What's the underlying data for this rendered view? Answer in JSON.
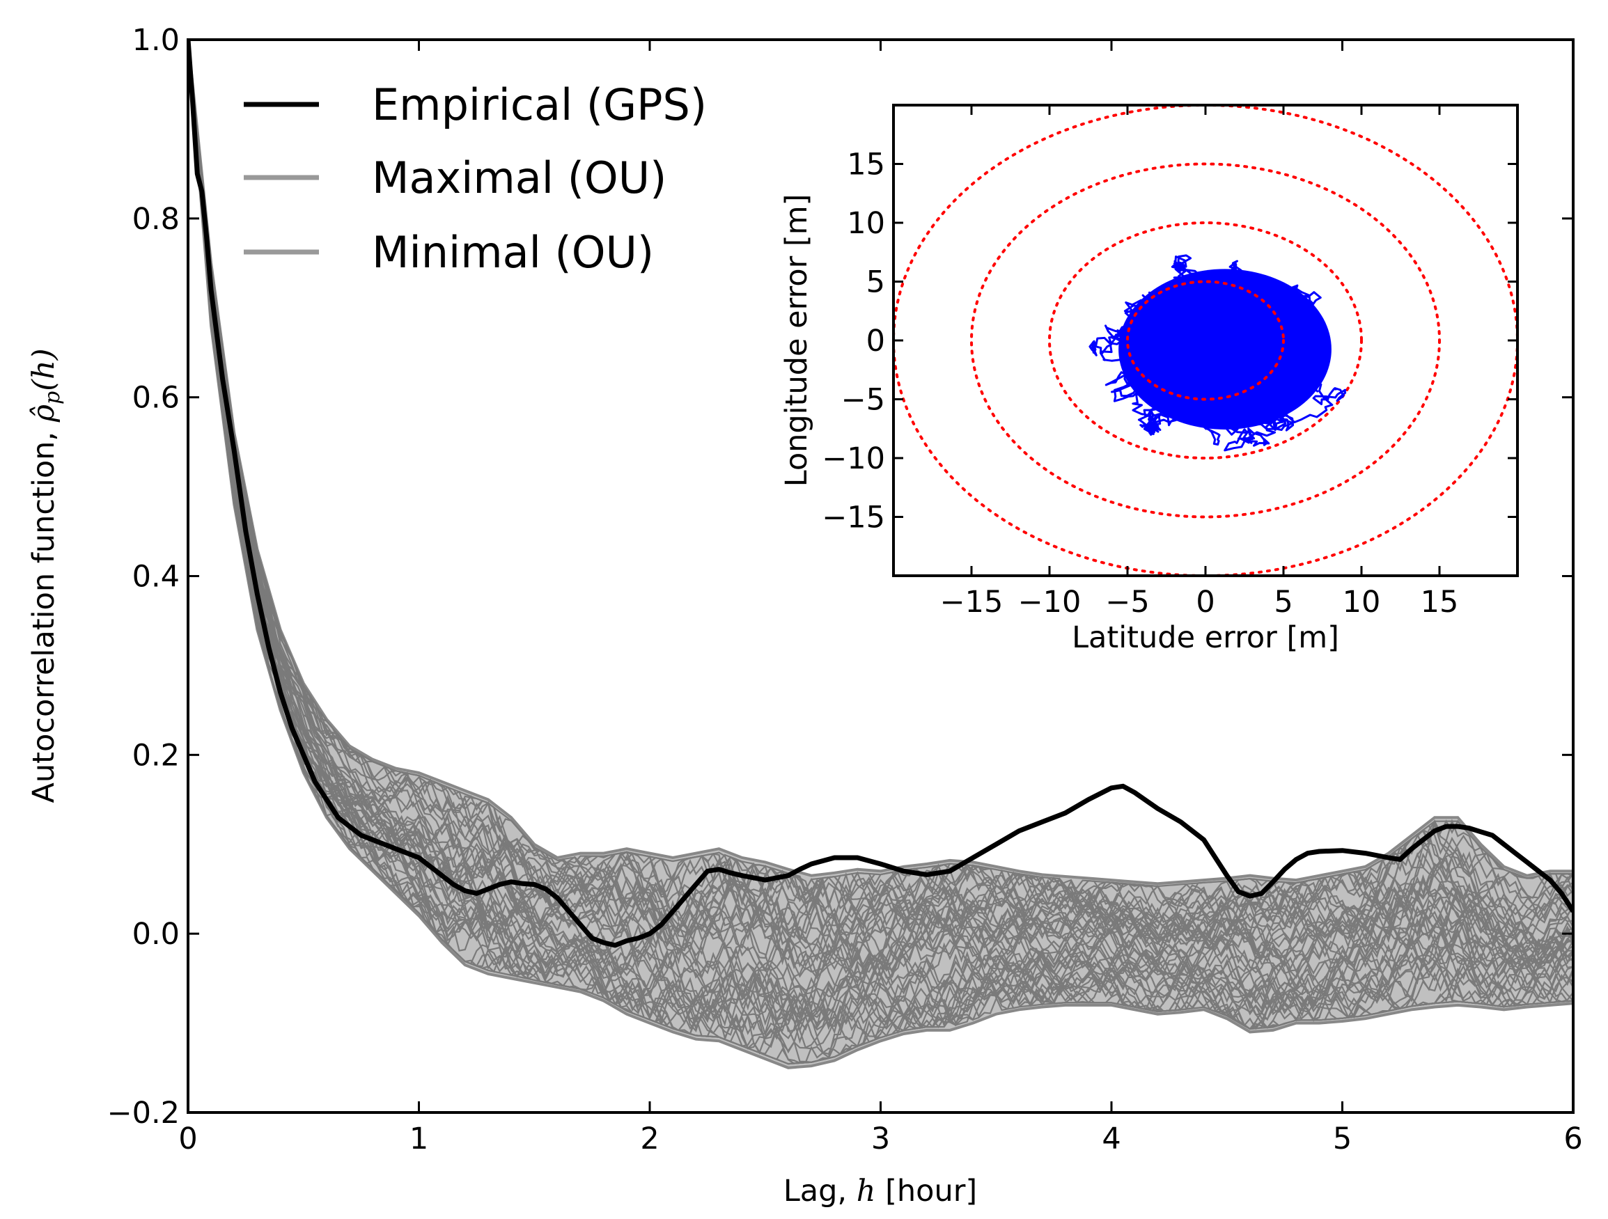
{
  "chart_data": [
    {
      "type": "line",
      "title": "",
      "xlabel": "Lag, h [hour]",
      "xlabel_parts": {
        "prefix": "Lag, ",
        "var": "h",
        "suffix": " [hour]"
      },
      "ylabel": "Autocorrelation function, ρ̂p(h)",
      "ylabel_parts": {
        "prefix": "Autocorrelation function, ",
        "var": "ρ̂",
        "sub": "p",
        "suffix": "(h)"
      },
      "xlim": [
        0,
        6
      ],
      "ylim": [
        -0.2,
        1.0
      ],
      "xticks": [
        "0",
        "1",
        "2",
        "3",
        "4",
        "5",
        "6"
      ],
      "yticks": [
        "−0.2",
        "0.0",
        "0.2",
        "0.4",
        "0.6",
        "0.8",
        "1.0"
      ],
      "grid": false,
      "legend_position": "top-left",
      "series": [
        {
          "name": "Empirical (GPS)",
          "color": "#000000",
          "x": [
            0,
            0.02,
            0.04,
            0.06,
            0.08,
            0.1,
            0.15,
            0.2,
            0.25,
            0.3,
            0.35,
            0.4,
            0.45,
            0.5,
            0.55,
            0.6,
            0.65,
            0.7,
            0.75,
            0.8,
            0.85,
            0.9,
            0.95,
            1.0,
            1.05,
            1.1,
            1.15,
            1.2,
            1.25,
            1.3,
            1.35,
            1.4,
            1.45,
            1.5,
            1.55,
            1.6,
            1.65,
            1.7,
            1.75,
            1.8,
            1.85,
            1.9,
            1.95,
            2.0,
            2.05,
            2.1,
            2.15,
            2.2,
            2.25,
            2.3,
            2.35,
            2.4,
            2.5,
            2.6,
            2.65,
            2.7,
            2.8,
            2.9,
            3.0,
            3.1,
            3.2,
            3.3,
            3.4,
            3.5,
            3.6,
            3.7,
            3.8,
            3.9,
            4.0,
            4.05,
            4.1,
            4.2,
            4.3,
            4.4,
            4.45,
            4.5,
            4.55,
            4.6,
            4.65,
            4.7,
            4.75,
            4.8,
            4.85,
            4.9,
            5.0,
            5.1,
            5.2,
            5.25,
            5.3,
            5.35,
            5.4,
            5.45,
            5.5,
            5.55,
            5.6,
            5.65,
            5.7,
            5.75,
            5.8,
            5.85,
            5.9,
            5.95,
            6.0
          ],
          "y": [
            1.0,
            0.93,
            0.85,
            0.83,
            0.78,
            0.72,
            0.62,
            0.54,
            0.45,
            0.38,
            0.32,
            0.27,
            0.23,
            0.2,
            0.17,
            0.15,
            0.13,
            0.12,
            0.11,
            0.105,
            0.1,
            0.095,
            0.09,
            0.085,
            0.075,
            0.065,
            0.055,
            0.048,
            0.045,
            0.05,
            0.055,
            0.058,
            0.056,
            0.055,
            0.05,
            0.04,
            0.025,
            0.01,
            -0.005,
            -0.01,
            -0.013,
            -0.008,
            -0.005,
            0.0,
            0.01,
            0.025,
            0.04,
            0.055,
            0.07,
            0.072,
            0.068,
            0.065,
            0.06,
            0.065,
            0.072,
            0.078,
            0.085,
            0.085,
            0.078,
            0.07,
            0.066,
            0.07,
            0.085,
            0.1,
            0.115,
            0.125,
            0.135,
            0.15,
            0.163,
            0.165,
            0.158,
            0.14,
            0.125,
            0.105,
            0.085,
            0.065,
            0.047,
            0.042,
            0.045,
            0.058,
            0.072,
            0.083,
            0.09,
            0.092,
            0.093,
            0.09,
            0.085,
            0.083,
            0.095,
            0.105,
            0.115,
            0.12,
            0.12,
            0.118,
            0.114,
            0.11,
            0.1,
            0.09,
            0.08,
            0.07,
            0.06,
            0.045,
            0.025
          ]
        },
        {
          "name": "Maximal (OU)",
          "color": "#999999",
          "x": [
            0,
            0.1,
            0.2,
            0.3,
            0.4,
            0.5,
            0.6,
            0.7,
            0.8,
            0.9,
            1.0,
            1.1,
            1.2,
            1.3,
            1.4,
            1.5,
            1.6,
            1.7,
            1.8,
            1.9,
            2.0,
            2.1,
            2.2,
            2.3,
            2.4,
            2.5,
            2.6,
            2.7,
            2.8,
            2.9,
            3.0,
            3.1,
            3.2,
            3.3,
            3.4,
            3.5,
            3.6,
            3.7,
            3.8,
            3.9,
            4.0,
            4.1,
            4.2,
            4.3,
            4.4,
            4.5,
            4.6,
            4.7,
            4.8,
            4.9,
            5.0,
            5.1,
            5.2,
            5.3,
            5.4,
            5.5,
            5.6,
            5.7,
            5.8,
            5.9,
            6.0
          ],
          "y": [
            1.0,
            0.75,
            0.56,
            0.43,
            0.34,
            0.28,
            0.24,
            0.21,
            0.195,
            0.185,
            0.18,
            0.17,
            0.16,
            0.15,
            0.13,
            0.1,
            0.085,
            0.09,
            0.09,
            0.095,
            0.09,
            0.085,
            0.09,
            0.095,
            0.085,
            0.08,
            0.072,
            0.065,
            0.068,
            0.072,
            0.07,
            0.075,
            0.078,
            0.082,
            0.08,
            0.075,
            0.07,
            0.066,
            0.064,
            0.062,
            0.06,
            0.058,
            0.056,
            0.058,
            0.06,
            0.062,
            0.065,
            0.062,
            0.06,
            0.065,
            0.07,
            0.075,
            0.09,
            0.11,
            0.13,
            0.13,
            0.1,
            0.075,
            0.065,
            0.07,
            0.07
          ]
        },
        {
          "name": "Minimal (OU)",
          "color": "#999999",
          "x": [
            0,
            0.1,
            0.2,
            0.3,
            0.4,
            0.5,
            0.6,
            0.7,
            0.8,
            0.9,
            1.0,
            1.1,
            1.2,
            1.3,
            1.4,
            1.5,
            1.6,
            1.7,
            1.8,
            1.9,
            2.0,
            2.1,
            2.2,
            2.3,
            2.4,
            2.5,
            2.6,
            2.7,
            2.8,
            2.9,
            3.0,
            3.1,
            3.2,
            3.3,
            3.4,
            3.5,
            3.6,
            3.7,
            3.8,
            3.9,
            4.0,
            4.1,
            4.2,
            4.3,
            4.4,
            4.5,
            4.6,
            4.7,
            4.8,
            4.9,
            5.0,
            5.1,
            5.2,
            5.3,
            5.4,
            5.5,
            5.6,
            5.7,
            5.8,
            5.9,
            6.0
          ],
          "y": [
            1.0,
            0.68,
            0.48,
            0.34,
            0.25,
            0.18,
            0.13,
            0.095,
            0.07,
            0.045,
            0.02,
            -0.01,
            -0.035,
            -0.045,
            -0.05,
            -0.055,
            -0.06,
            -0.065,
            -0.075,
            -0.09,
            -0.1,
            -0.11,
            -0.118,
            -0.12,
            -0.13,
            -0.14,
            -0.15,
            -0.148,
            -0.142,
            -0.13,
            -0.12,
            -0.112,
            -0.108,
            -0.108,
            -0.1,
            -0.09,
            -0.085,
            -0.082,
            -0.08,
            -0.08,
            -0.08,
            -0.085,
            -0.09,
            -0.088,
            -0.085,
            -0.095,
            -0.11,
            -0.108,
            -0.1,
            -0.1,
            -0.098,
            -0.095,
            -0.09,
            -0.085,
            -0.082,
            -0.08,
            -0.082,
            -0.085,
            -0.082,
            -0.08,
            -0.078
          ]
        }
      ]
    },
    {
      "type": "scatter",
      "title": "",
      "xlabel": "Latitude error [m]",
      "ylabel": "Longitude error [m]",
      "xlim": [
        -20,
        20
      ],
      "ylim": [
        -20,
        20
      ],
      "xticks": [
        "−15",
        "−10",
        "−5",
        "0",
        "5",
        "10",
        "15"
      ],
      "yticks": [
        "15",
        "10",
        "5",
        "0",
        "−5",
        "−10",
        "−15"
      ],
      "xtick_values": [
        -15,
        -10,
        -5,
        0,
        5,
        10,
        15
      ],
      "ytick_values": [
        15,
        10,
        5,
        0,
        -5,
        -10,
        -15
      ],
      "grid": false,
      "trajectory_color": "#0000ff",
      "trajectory_extent": {
        "lat": [
          -7.5,
          10
        ],
        "lon": [
          -9.5,
          8
        ]
      },
      "reference_circles": {
        "radii": [
          5,
          10,
          15,
          20
        ],
        "color": "#ff0000",
        "style": "dotted"
      }
    }
  ],
  "styles": {
    "ou_band_fill": "#c0c0c0",
    "ou_line_color": "#7a7a7a",
    "ou_sample_count": 50
  }
}
